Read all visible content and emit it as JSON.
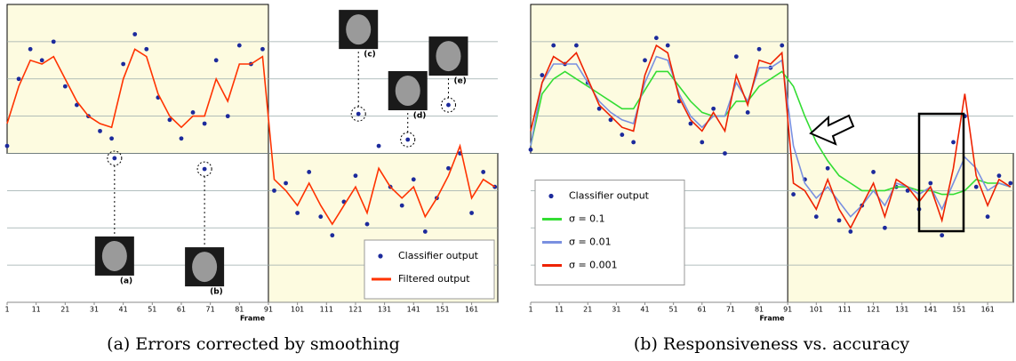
{
  "chart_data": [
    {
      "type": "line",
      "caption": "(a) Errors corrected by smoothing",
      "xlabel": "Frame",
      "x": [
        1,
        5,
        9,
        13,
        17,
        21,
        25,
        29,
        33,
        37,
        41,
        45,
        49,
        53,
        57,
        61,
        65,
        69,
        73,
        77,
        81,
        85,
        89,
        93,
        97,
        101,
        105,
        109,
        113,
        117,
        121,
        125,
        129,
        133,
        137,
        141,
        145,
        149,
        153,
        157,
        161,
        165,
        169
      ],
      "xlim": [
        1,
        170
      ],
      "xticks": [
        1,
        11,
        21,
        31,
        41,
        51,
        61,
        71,
        81,
        91,
        101,
        111,
        121,
        131,
        141,
        151,
        161
      ],
      "ylim": [
        0,
        8
      ],
      "yticks": [
        1,
        2,
        3,
        4,
        5,
        6,
        7
      ],
      "grid": true,
      "legend": "lower right",
      "regions": [
        {
          "x0": 1,
          "x1": 91,
          "y0": 4,
          "y1": 8
        },
        {
          "x0": 91,
          "x1": 170,
          "y0": 0,
          "y1": 4
        }
      ],
      "series": [
        {
          "name": "Classifier output",
          "color": "#1c2a9c",
          "mode": "markers",
          "values": [
            4.2,
            6.0,
            6.8,
            6.5,
            7.0,
            5.8,
            5.3,
            5.0,
            4.6,
            4.4,
            6.4,
            7.2,
            6.8,
            5.5,
            4.9,
            4.4,
            5.1,
            4.8,
            6.5,
            5.0,
            6.9,
            6.4,
            6.8,
            3.0,
            3.2,
            2.4,
            3.5,
            2.3,
            1.8,
            2.7,
            3.4,
            2.1,
            4.2,
            3.1,
            2.6,
            3.3,
            1.9,
            2.8,
            3.6,
            4.0,
            2.4,
            3.5,
            3.1
          ]
        },
        {
          "name": "Filtered output",
          "color": "#ff3300",
          "mode": "lines",
          "values": [
            4.8,
            5.8,
            6.5,
            6.4,
            6.6,
            6.0,
            5.4,
            5.0,
            4.8,
            4.7,
            6.0,
            6.8,
            6.6,
            5.6,
            5.0,
            4.7,
            5.0,
            5.0,
            6.0,
            5.4,
            6.4,
            6.4,
            6.6,
            3.3,
            3.0,
            2.6,
            3.2,
            2.6,
            2.1,
            2.6,
            3.1,
            2.4,
            3.6,
            3.1,
            2.8,
            3.1,
            2.3,
            2.8,
            3.4,
            4.2,
            2.8,
            3.3,
            3.1
          ]
        }
      ],
      "annotations": [
        {
          "x": 38,
          "y": 3.87,
          "label": "(a)"
        },
        {
          "x": 69,
          "y": 3.58,
          "label": "(b)"
        },
        {
          "x": 122,
          "y": 5.06,
          "label": "(c)"
        },
        {
          "x": 139,
          "y": 4.37,
          "label": "(d)"
        },
        {
          "x": 153,
          "y": 5.3,
          "label": "(e)"
        }
      ]
    },
    {
      "type": "line",
      "caption": "(b) Responsiveness vs. accuracy",
      "xlabel": "Frame",
      "x": [
        1,
        5,
        9,
        13,
        17,
        21,
        25,
        29,
        33,
        37,
        41,
        45,
        49,
        53,
        57,
        61,
        65,
        69,
        73,
        77,
        81,
        85,
        89,
        93,
        97,
        101,
        105,
        109,
        113,
        117,
        121,
        125,
        129,
        133,
        137,
        141,
        145,
        149,
        153,
        157,
        161,
        165,
        169
      ],
      "xlim": [
        1,
        170
      ],
      "xticks": [
        1,
        11,
        21,
        31,
        41,
        51,
        61,
        71,
        81,
        91,
        101,
        111,
        121,
        131,
        141,
        151,
        161
      ],
      "ylim": [
        0,
        8
      ],
      "yticks": [
        1,
        2,
        3,
        4,
        5,
        6,
        7
      ],
      "grid": true,
      "legend": "center left",
      "regions": [
        {
          "x0": 1,
          "x1": 91,
          "y0": 4,
          "y1": 8
        },
        {
          "x0": 91,
          "x1": 170,
          "y0": 0,
          "y1": 4
        }
      ],
      "series": [
        {
          "name": "Classifier output",
          "color": "#1c2a9c",
          "mode": "markers",
          "values": [
            4.1,
            6.1,
            6.9,
            6.4,
            6.9,
            5.9,
            5.2,
            4.9,
            4.5,
            4.3,
            6.5,
            7.1,
            6.9,
            5.4,
            4.8,
            4.3,
            5.2,
            4.0,
            6.6,
            5.1,
            6.8,
            6.3,
            6.9,
            2.9,
            3.3,
            2.3,
            3.6,
            2.2,
            1.9,
            2.6,
            3.5,
            2.0,
            3.1,
            3.0,
            2.5,
            3.2,
            1.8,
            4.3,
            5.0,
            3.1,
            2.3,
            3.4,
            3.2
          ]
        },
        {
          "name": "σ = 0.1",
          "color": "#33dd33",
          "mode": "lines",
          "values": [
            4.2,
            5.6,
            6.0,
            6.2,
            6.0,
            5.8,
            5.6,
            5.4,
            5.2,
            5.2,
            5.7,
            6.2,
            6.2,
            5.8,
            5.4,
            5.1,
            5.0,
            5.0,
            5.4,
            5.4,
            5.8,
            6.0,
            6.2,
            5.8,
            5.0,
            4.3,
            3.8,
            3.4,
            3.2,
            3.0,
            3.0,
            3.0,
            3.1,
            3.1,
            3.0,
            3.0,
            2.9,
            2.9,
            3.0,
            3.3,
            3.2,
            3.2,
            3.1
          ]
        },
        {
          "name": "σ = 0.01",
          "color": "#7a90e0",
          "mode": "lines",
          "values": [
            4.2,
            5.9,
            6.4,
            6.4,
            6.4,
            5.9,
            5.4,
            5.1,
            4.9,
            4.8,
            5.9,
            6.6,
            6.5,
            5.6,
            5.0,
            4.7,
            5.0,
            5.0,
            5.9,
            5.4,
            6.3,
            6.3,
            6.5,
            4.2,
            3.2,
            2.8,
            3.1,
            2.7,
            2.3,
            2.6,
            3.0,
            2.6,
            3.2,
            3.1,
            2.9,
            3.1,
            2.5,
            3.2,
            3.9,
            3.6,
            3.0,
            3.2,
            3.1
          ]
        },
        {
          "name": "σ = 0.001",
          "color": "#ee2200",
          "mode": "lines",
          "values": [
            4.6,
            5.9,
            6.6,
            6.4,
            6.7,
            6.0,
            5.3,
            5.0,
            4.7,
            4.6,
            6.1,
            6.9,
            6.7,
            5.5,
            4.9,
            4.6,
            5.1,
            4.6,
            6.1,
            5.3,
            6.5,
            6.4,
            6.7,
            3.2,
            3.0,
            2.5,
            3.3,
            2.5,
            2.0,
            2.6,
            3.2,
            2.3,
            3.3,
            3.1,
            2.7,
            3.1,
            2.2,
            3.6,
            5.6,
            3.4,
            2.6,
            3.3,
            3.1
          ]
        }
      ]
    }
  ]
}
